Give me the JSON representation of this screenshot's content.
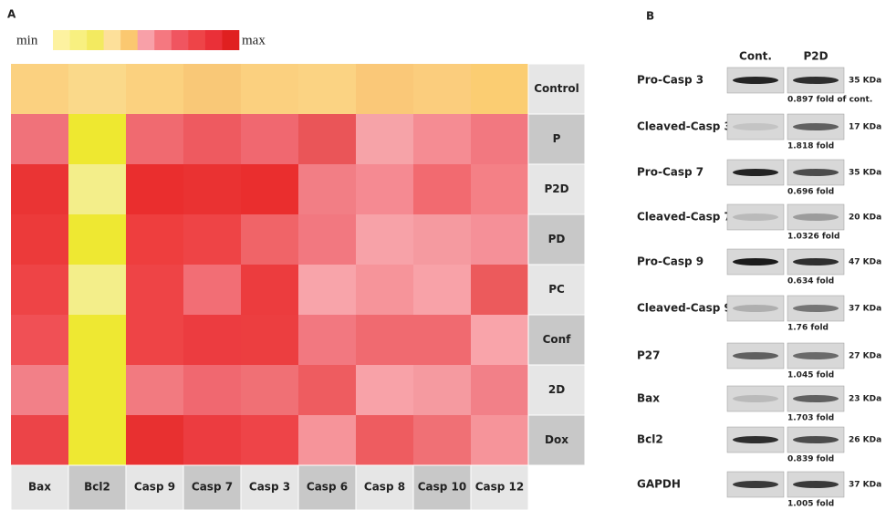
{
  "heatmap": {
    "panel_label": "A",
    "legend_min": "min",
    "legend_max": "max",
    "legend_colors": [
      "#fdf2a0",
      "#f8f080",
      "#f3ea60",
      "#fde09a",
      "#fbc870",
      "#f8a0a8",
      "#f57880",
      "#f05560",
      "#ee4448",
      "#ea3038",
      "#e02020"
    ],
    "columns": [
      "Bax",
      "Bcl2",
      "Casp 9",
      "Casp 7",
      "Casp 3",
      "Casp 6",
      "Casp 8",
      "Casp 10",
      "Casp 12"
    ],
    "rows": [
      "Control",
      "P",
      "P2D",
      "PD",
      "PC",
      "Conf",
      "2D",
      "Dox"
    ],
    "cells": [
      [
        "#fbd180",
        "#fad98a",
        "#fbd17f",
        "#f9c877",
        "#fbd07f",
        "#fbd383",
        "#fac878",
        "#fbcd7d",
        "#fbcd72"
      ],
      [
        "#f0727a",
        "#eee830",
        "#f06a70",
        "#ee5a60",
        "#f06870",
        "#ea5558",
        "#f6a3a8",
        "#f58c93",
        "#f27880"
      ],
      [
        "#ea3434",
        "#f3ee8a",
        "#ea2e2e",
        "#ea3232",
        "#ea2e2e",
        "#f27e85",
        "#f58a92",
        "#f26a70",
        "#f48086"
      ],
      [
        "#ec3a3a",
        "#eee832",
        "#ee3e3e",
        "#ee4446",
        "#f06468",
        "#f27880",
        "#f7a2a8",
        "#f59aa0",
        "#f59098"
      ],
      [
        "#ee4446",
        "#f3ee8a",
        "#ee4446",
        "#f26e75",
        "#ec3c3e",
        "#f8a4aa",
        "#f6949a",
        "#f8a2a8",
        "#ec5a5c"
      ],
      [
        "#f05055",
        "#eee832",
        "#ee4446",
        "#ec3c40",
        "#ec3e40",
        "#f27880",
        "#f06a70",
        "#f06a70",
        "#f9a4aa"
      ],
      [
        "#f28088",
        "#eee832",
        "#f27a80",
        "#f06870",
        "#f07075",
        "#ee5c60",
        "#f8a2a8",
        "#f59aa0",
        "#f28088"
      ],
      [
        "#ec4448",
        "#eee832",
        "#e83030",
        "#ec3c40",
        "#ee4448",
        "#f6949a",
        "#ee5c60",
        "#f07075",
        "#f6949a"
      ]
    ]
  },
  "blot": {
    "panel_label": "B",
    "lanes": [
      "Cont.",
      "P2D"
    ],
    "rows": [
      {
        "protein": "Pro-Casp 3",
        "size": "35 KDa",
        "fold": "0.897 fold of cont."
      },
      {
        "protein": "Cleaved-Casp 3",
        "size": "17 KDa",
        "fold": "1.818 fold"
      },
      {
        "protein": "Pro-Casp 7",
        "size": "35 KDa",
        "fold": "0.696 fold"
      },
      {
        "protein": "Cleaved-Casp 7",
        "size": "20 KDa",
        "fold": "1.0326 fold"
      },
      {
        "protein": "Pro-Casp 9",
        "size": "47 KDa",
        "fold": "0.634 fold"
      },
      {
        "protein": "Cleaved-Casp 9",
        "size": "37 KDa",
        "fold": "1.76 fold"
      },
      {
        "protein": "P27",
        "size": "27 KDa",
        "fold": "1.045 fold"
      },
      {
        "protein": "Bax",
        "size": "23 KDa",
        "fold": "1.703 fold"
      },
      {
        "protein": "Bcl2",
        "size": "26 KDa",
        "fold": "0.839 fold"
      },
      {
        "protein": "GAPDH",
        "size": "37 KDa",
        "fold": "1.005 fold"
      }
    ]
  }
}
